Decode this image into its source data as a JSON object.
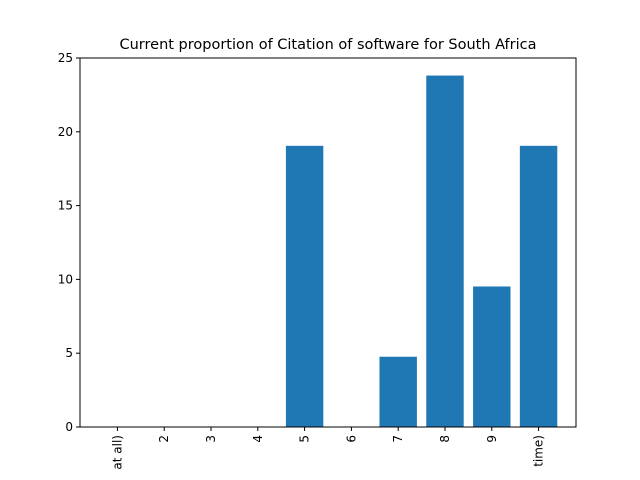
{
  "chart_data": {
    "type": "bar",
    "title": "Current proportion of Citation of software for South Africa",
    "xlabel": "",
    "ylabel": "",
    "categories": [
      "at all)",
      "2",
      "3",
      "4",
      "5",
      "6",
      "7",
      "8",
      "9",
      "time)"
    ],
    "values": [
      0,
      0,
      0,
      0,
      19.05,
      0,
      4.76,
      23.81,
      9.52,
      19.05
    ],
    "ylim": [
      0,
      25
    ],
    "yticks": [
      "0",
      "5",
      "10",
      "15",
      "20",
      "25"
    ],
    "bar_color": "#1f77b4",
    "grid": false,
    "legend": "none"
  }
}
